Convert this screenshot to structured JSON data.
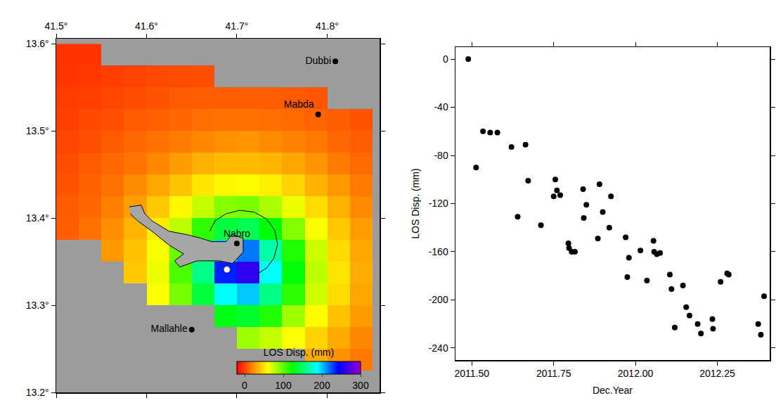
{
  "chart_data": [
    {
      "type": "heatmap",
      "xlim": [
        41.5,
        41.858
      ],
      "ylim": [
        13.2,
        13.606
      ],
      "xticks": [
        {
          "value": 41.5,
          "label": "41.5°"
        },
        {
          "value": 41.6,
          "label": "41.6°"
        },
        {
          "value": 41.7,
          "label": "41.7°"
        },
        {
          "value": 41.8,
          "label": "41.8°"
        }
      ],
      "yticks": [
        {
          "value": 13.2,
          "label": "13.2°"
        },
        {
          "value": 13.3,
          "label": "13.3°"
        },
        {
          "value": 13.4,
          "label": "13.4°"
        },
        {
          "value": 13.5,
          "label": "13.5°"
        },
        {
          "value": 13.6,
          "label": "13.6°"
        }
      ],
      "x": [
        41.5125,
        41.5375,
        41.5625,
        41.5875,
        41.6125,
        41.6375,
        41.6625,
        41.6875,
        41.7125,
        41.7375,
        41.7625,
        41.7875,
        41.8125,
        41.8375
      ],
      "y": [
        13.2125,
        13.2375,
        13.2625,
        13.2875,
        13.3125,
        13.3375,
        13.3625,
        13.3875,
        13.4125,
        13.4375,
        13.4625,
        13.4875,
        13.5125,
        13.5375,
        13.5625,
        13.5875
      ],
      "z": [
        [
          null,
          null,
          null,
          null,
          null,
          null,
          null,
          null,
          null,
          null,
          null,
          null,
          null,
          null
        ],
        [
          null,
          null,
          null,
          null,
          null,
          null,
          null,
          null,
          null,
          null,
          null,
          33,
          24,
          16
        ],
        [
          null,
          null,
          null,
          null,
          null,
          null,
          null,
          null,
          84,
          75,
          61,
          46,
          32,
          21
        ],
        [
          null,
          null,
          null,
          null,
          null,
          null,
          null,
          129,
          135,
          116,
          84,
          59,
          40,
          27
        ],
        [
          null,
          null,
          null,
          null,
          61,
          94,
          139,
          187,
          200,
          158,
          113,
          72,
          49,
          31
        ],
        [
          null,
          null,
          null,
          42,
          65,
          105,
          158,
          236,
          260,
          187,
          125,
          77,
          51,
          33
        ],
        [
          null,
          null,
          26,
          40,
          62,
          98,
          145,
          200,
          217,
          166,
          116,
          73,
          48,
          31
        ],
        [
          8,
          14,
          23,
          36,
          54,
          77,
          112,
          139,
          144,
          125,
          91,
          62,
          42,
          28
        ],
        [
          7,
          11,
          18,
          29,
          42,
          58,
          75,
          91,
          94,
          81,
          65,
          49,
          34,
          22
        ],
        [
          5,
          9,
          14,
          22,
          31,
          41,
          52,
          58,
          59,
          55,
          46,
          35,
          26,
          17
        ],
        [
          3,
          7,
          11,
          15,
          21,
          28,
          34,
          38,
          38,
          36,
          31,
          25,
          17,
          12
        ],
        [
          1,
          4,
          7,
          11,
          14,
          17,
          21,
          24,
          25,
          22,
          19,
          16,
          11,
          8
        ],
        [
          -1,
          2,
          4,
          7,
          9,
          11,
          13,
          14,
          14,
          13,
          12,
          10,
          8,
          5
        ],
        [
          -2,
          -1,
          1,
          3,
          5,
          7,
          8,
          8,
          8,
          8,
          7,
          6,
          null,
          null
        ],
        [
          -4,
          -3,
          -1,
          0,
          2,
          3,
          4,
          null,
          null,
          null,
          null,
          null,
          null,
          null
        ],
        [
          -5,
          -5,
          null,
          null,
          null,
          null,
          null,
          null,
          null,
          null,
          null,
          null,
          null,
          null
        ]
      ],
      "colorbar": {
        "title": "LOS Disp. (mm)",
        "range": [
          -20,
          300
        ],
        "ticks": [
          0,
          100,
          200,
          300
        ]
      },
      "points": [
        {
          "label": "Dubbi",
          "x": 41.809,
          "y": 13.58
        },
        {
          "label": "Mabda",
          "x": 41.79,
          "y": 13.519
        },
        {
          "label": "Nabro",
          "x": 41.7,
          "y": 13.371
        },
        {
          "label": "Mallahle",
          "x": 41.65,
          "y": 13.272
        }
      ],
      "marker_point": {
        "x": 41.689,
        "y": 13.341,
        "color": "white"
      },
      "lava_flow": {
        "x": [
          41.581,
          41.594,
          41.598,
          41.606,
          41.625,
          41.645,
          41.66,
          41.672,
          41.688,
          41.695,
          41.707,
          41.707,
          41.695,
          41.68,
          41.656,
          41.637,
          41.631,
          41.641,
          41.625,
          41.606,
          41.59,
          41.582
        ],
        "y": [
          13.413,
          13.415,
          13.405,
          13.397,
          13.385,
          13.381,
          13.377,
          13.373,
          13.373,
          13.381,
          13.377,
          13.361,
          13.348,
          13.351,
          13.351,
          13.344,
          13.351,
          13.359,
          13.369,
          13.385,
          13.397,
          13.405
        ]
      },
      "caldera": {
        "x": [
          41.67,
          41.676,
          41.688,
          41.703,
          41.719,
          41.733,
          41.742,
          41.745,
          41.741,
          41.733,
          41.723
        ],
        "y": [
          13.385,
          13.397,
          13.405,
          13.409,
          13.407,
          13.399,
          13.386,
          13.37,
          13.354,
          13.343,
          13.336
        ]
      }
    },
    {
      "type": "scatter",
      "x_label": "Dec.Year",
      "y_label": "LOS Disp. (mm)",
      "xlim": [
        2011.45,
        2012.41
      ],
      "ylim": [
        -250,
        10
      ],
      "xticks": [
        {
          "value": 2011.5,
          "label": "2011.50"
        },
        2011.75,
        {
          "value": 2012.0,
          "label": "2012.00"
        },
        2012.25
      ],
      "yticks": [
        0,
        -40,
        -80,
        -120,
        -160,
        -200,
        -240
      ],
      "color": "black",
      "marker": "circle",
      "x": [
        2011.489,
        2011.513,
        2011.534,
        2011.556,
        2011.578,
        2011.621,
        2011.64,
        2011.664,
        2011.672,
        2011.711,
        2011.75,
        2011.755,
        2011.76,
        2011.77,
        2011.795,
        2011.797,
        2011.805,
        2011.815,
        2011.84,
        2011.842,
        2011.85,
        2011.885,
        2011.89,
        2011.9,
        2011.92,
        2011.925,
        2011.97,
        2011.975,
        2011.98,
        2012.015,
        2012.035,
        2012.055,
        2012.057,
        2012.065,
        2012.075,
        2012.105,
        2012.11,
        2012.12,
        2012.145,
        2012.155,
        2012.165,
        2012.19,
        2012.2,
        2012.235,
        2012.237,
        2012.26,
        2012.28,
        2012.285,
        2012.375,
        2012.383,
        2012.393
      ],
      "values": [
        0,
        -90,
        -60,
        -61,
        -61,
        -73,
        -131,
        -71,
        -101,
        -138,
        -114,
        -100,
        -109,
        -113,
        -153,
        -157,
        -160,
        -160,
        -108,
        -132,
        -121,
        -149,
        -104,
        -127,
        -140,
        -114,
        -148,
        -181,
        -165,
        -159,
        -184,
        -151,
        -160,
        -162,
        -161,
        -179,
        -191,
        -223,
        -188,
        -206,
        -213,
        -220,
        -228,
        -216,
        -224,
        -185,
        -178,
        -179,
        -220,
        -229,
        -197
      ]
    }
  ]
}
